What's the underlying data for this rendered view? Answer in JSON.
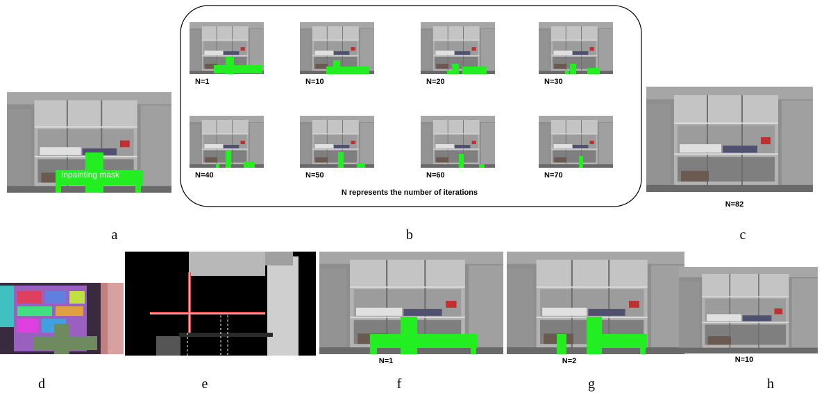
{
  "panel_a": {
    "annotation": "Inpainting mask",
    "label": "a"
  },
  "panel_b": {
    "thumbnails": [
      "N=1",
      "N=10",
      "N=20",
      "N=30",
      "N=40",
      "N=50",
      "N=60",
      "N=70"
    ],
    "caption": "N represents the number of iterations",
    "label": "b"
  },
  "panel_c": {
    "iteration": "N=82",
    "label": "c"
  },
  "panel_d": {
    "label": "d"
  },
  "panel_e": {
    "label": "e"
  },
  "panel_f": {
    "iteration": "N=1",
    "label": "f"
  },
  "panel_g": {
    "iteration": "N=2",
    "label": "g"
  },
  "panel_h": {
    "iteration": "N=10",
    "label": "h"
  }
}
